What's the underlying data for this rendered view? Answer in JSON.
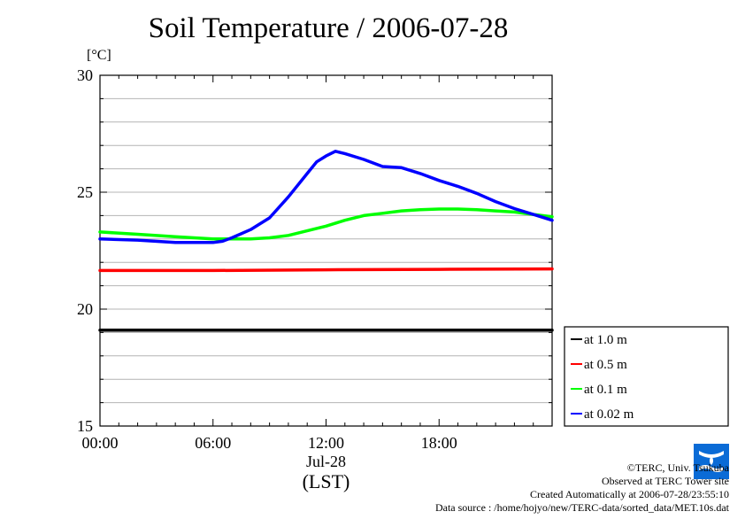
{
  "chart_data": {
    "type": "line",
    "title": "Soil Temperature / 2006-07-28",
    "unit": "[°C]",
    "ylim": [
      15,
      30
    ],
    "yticks": [
      15,
      20,
      25,
      30
    ],
    "xlim": [
      0,
      24
    ],
    "xticks": [
      {
        "value": 0,
        "label": "00:00"
      },
      {
        "value": 6,
        "label": "06:00"
      },
      {
        "value": 12,
        "label": "12:00"
      },
      {
        "value": 18,
        "label": "18:00"
      }
    ],
    "x_date_label": "Jul-28",
    "x_tz_label": "(LST)",
    "grid": "horizontal",
    "legend_position": "right",
    "series": [
      {
        "name": "at 1.0 m",
        "color": "#000000",
        "x": [
          0,
          6,
          12,
          18,
          24
        ],
        "y": [
          19.1,
          19.1,
          19.1,
          19.1,
          19.1
        ]
      },
      {
        "name": "at 0.5 m",
        "color": "#ff0000",
        "x": [
          0,
          6,
          12,
          18,
          24
        ],
        "y": [
          21.65,
          21.65,
          21.68,
          21.7,
          21.72
        ]
      },
      {
        "name": "at 0.1 m",
        "color": "#00ff00",
        "x": [
          0,
          2,
          4,
          6,
          7,
          8,
          9,
          10,
          11,
          12,
          13,
          14,
          15,
          16,
          17,
          18,
          19,
          20,
          21,
          22,
          23,
          24
        ],
        "y": [
          23.3,
          23.2,
          23.1,
          23.0,
          23.0,
          23.0,
          23.05,
          23.15,
          23.35,
          23.55,
          23.8,
          24.0,
          24.1,
          24.2,
          24.25,
          24.28,
          24.28,
          24.25,
          24.2,
          24.15,
          24.05,
          23.95
        ]
      },
      {
        "name": "at 0.02 m",
        "color": "#0000ff",
        "x": [
          0,
          2,
          4,
          6,
          6.5,
          7,
          8,
          9,
          10,
          11,
          11.5,
          12,
          12.5,
          13,
          14,
          15,
          16,
          17,
          18,
          19,
          20,
          21,
          22,
          23,
          24
        ],
        "y": [
          23.0,
          22.95,
          22.85,
          22.85,
          22.9,
          23.05,
          23.4,
          23.9,
          24.8,
          25.8,
          26.3,
          26.55,
          26.75,
          26.65,
          26.4,
          26.1,
          26.05,
          25.8,
          25.5,
          25.25,
          24.95,
          24.6,
          24.3,
          24.05,
          23.8
        ]
      }
    ]
  },
  "credits": {
    "copyright": "©TERC, Univ. Tsukuba",
    "observed": "Observed at TERC Tower site",
    "created": "Created Automatically at 2006-07-28/23:55:10",
    "source": "Data source : /home/hojyo/new/TERC-data/sorted_data/MET.10s.dat"
  },
  "logo": {
    "name": "terc-logo",
    "color": "#0a6bd6"
  }
}
